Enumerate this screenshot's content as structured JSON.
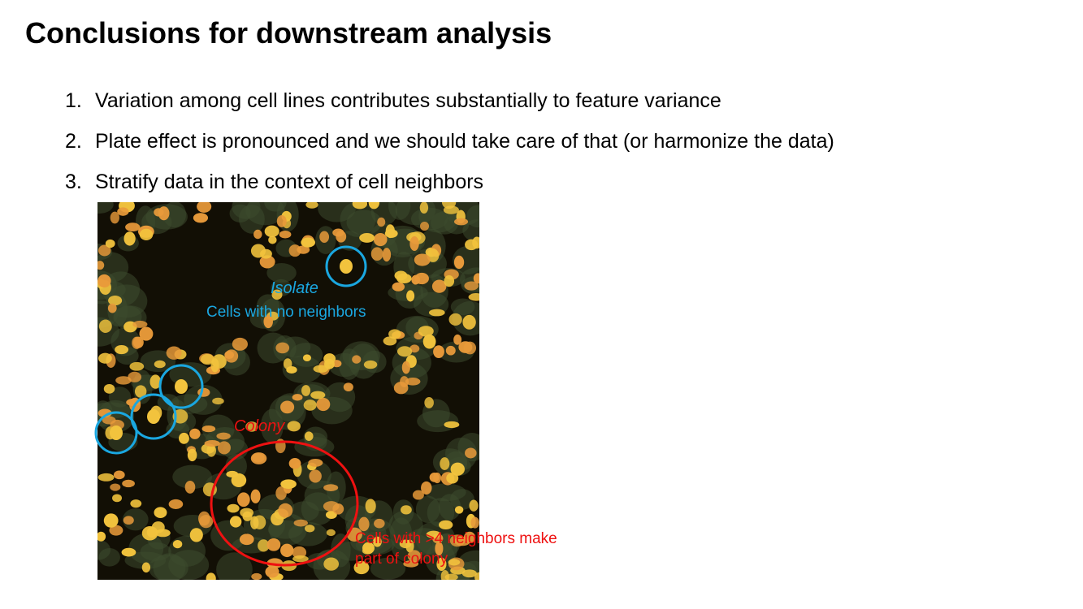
{
  "title": "Conclusions for downstream analysis",
  "conclusions": [
    {
      "num": "1.",
      "text": "Variation among cell lines contributes substantially to feature variance"
    },
    {
      "num": "2.",
      "text": "Plate effect is pronounced and we should take care of that (or harmonize the data)"
    },
    {
      "num": "3.",
      "text": "Stratify data in the context of cell neighbors"
    }
  ],
  "annotations": {
    "isolate": {
      "title": "Isolate",
      "description": "Cells with no neighbors"
    },
    "colony": {
      "title": "Colony",
      "description_line1": "Cells with >4 neighbors make",
      "description_line2": "part of colony"
    }
  },
  "colors": {
    "isolate_marker": "#1aa7e0",
    "colony_marker": "#ee1111",
    "cell_fill": "#f2c33d",
    "cell_nucleus": "#e89a3a",
    "cytoplasm": "#3c4a2e",
    "background": "#120f05"
  }
}
